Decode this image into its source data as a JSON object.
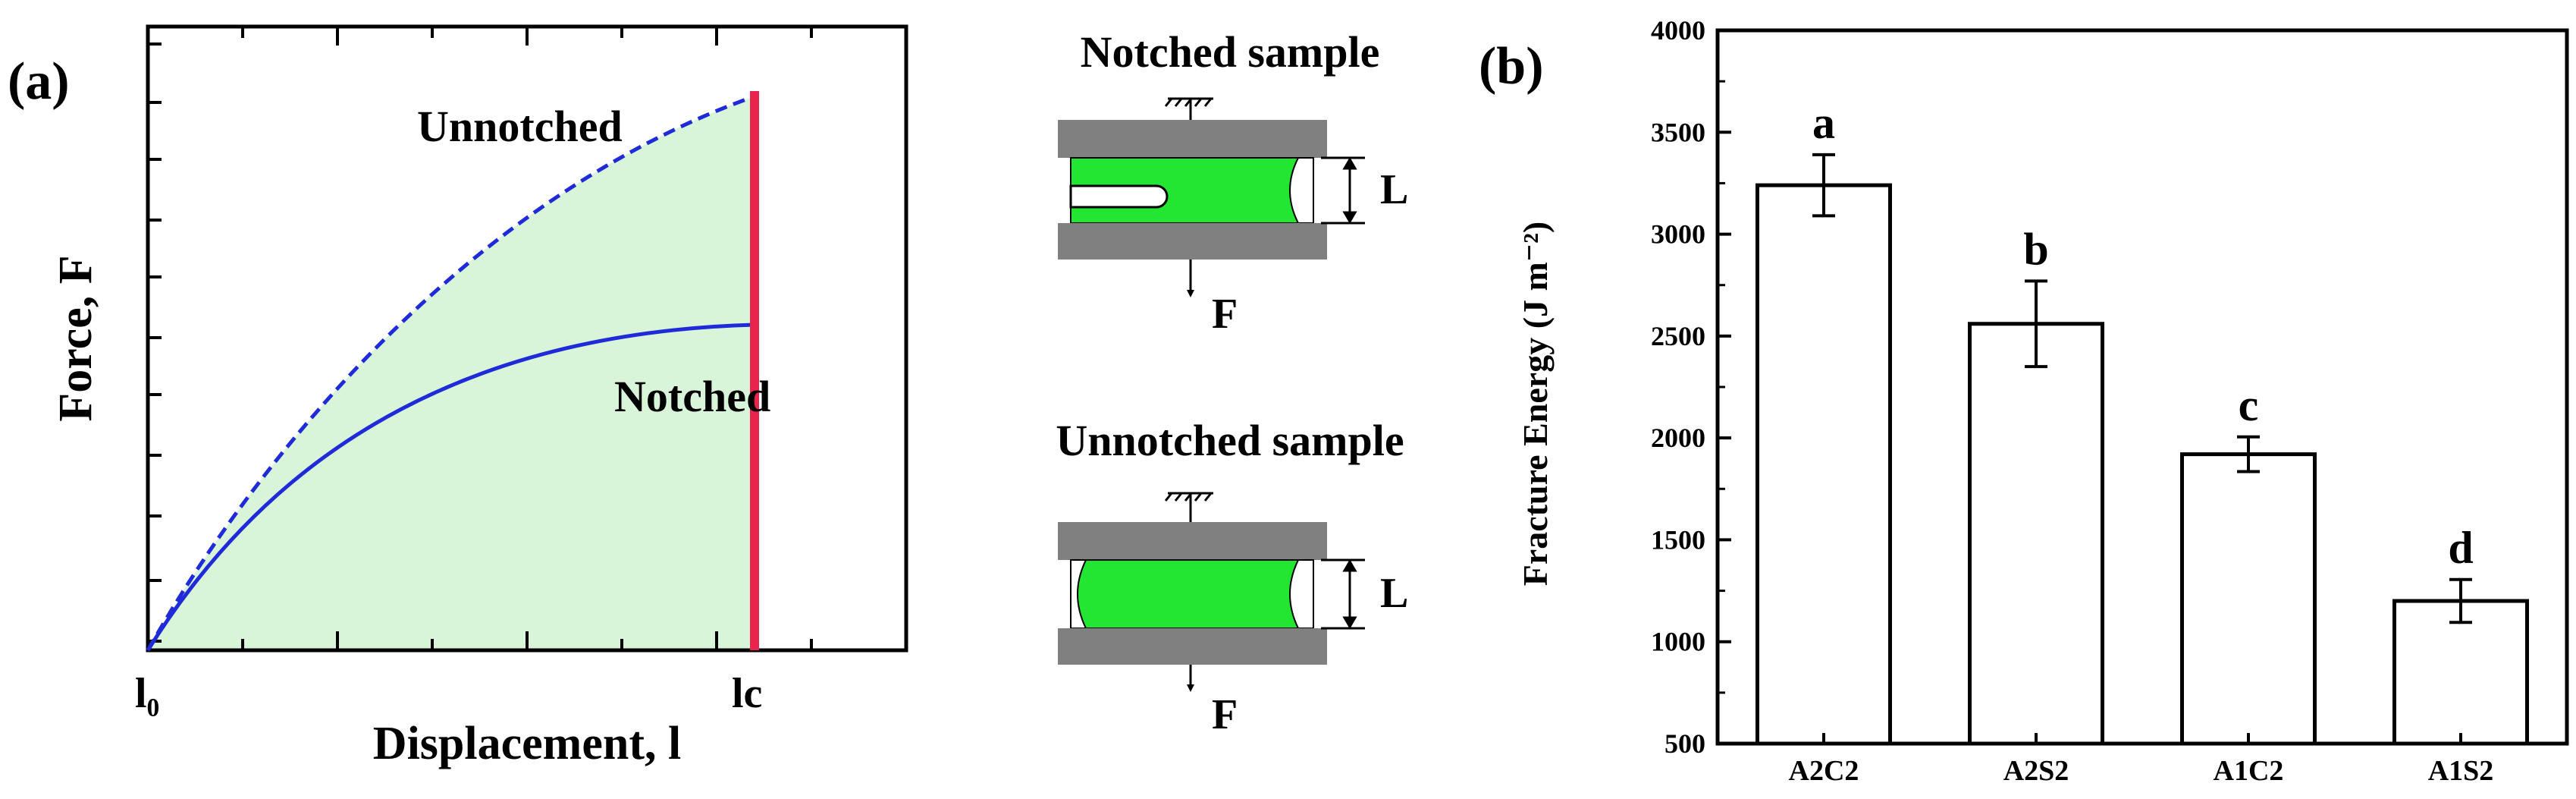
{
  "panel_a": {
    "label": "(a)",
    "xlabel": "Displacement, l",
    "ylabel": "Force, F",
    "tick_l0": "l₀",
    "tick_lc": "lc",
    "curve_unnotched_label": "Unnotched",
    "curve_notched_label": "Notched",
    "colors": {
      "unnotched": "#1f2bd8",
      "notched": "#1f2bd8",
      "fill": "#d9f5d9",
      "limit": "#e8234e"
    }
  },
  "diagram": {
    "notched_title": "Notched sample",
    "unnotched_title": "Unnotched sample",
    "length_label": "L",
    "force_label": "F",
    "colors": {
      "clamp": "#808080",
      "sample": "#22e632"
    }
  },
  "panel_b": {
    "label": "(b)",
    "chart_data": {
      "type": "bar",
      "categories": [
        "A2C2",
        "A2S2",
        "A1C2",
        "A1S2"
      ],
      "values": [
        3240,
        2560,
        1920,
        1200
      ],
      "errors": [
        150,
        210,
        85,
        105
      ],
      "significance": [
        "a",
        "b",
        "c",
        "d"
      ],
      "ylabel": "Fracture Energy (J m⁻²)",
      "ylim": [
        500,
        4000
      ],
      "yticks": [
        500,
        1000,
        1500,
        2000,
        2500,
        3000,
        3500,
        4000
      ],
      "grid": false
    }
  }
}
